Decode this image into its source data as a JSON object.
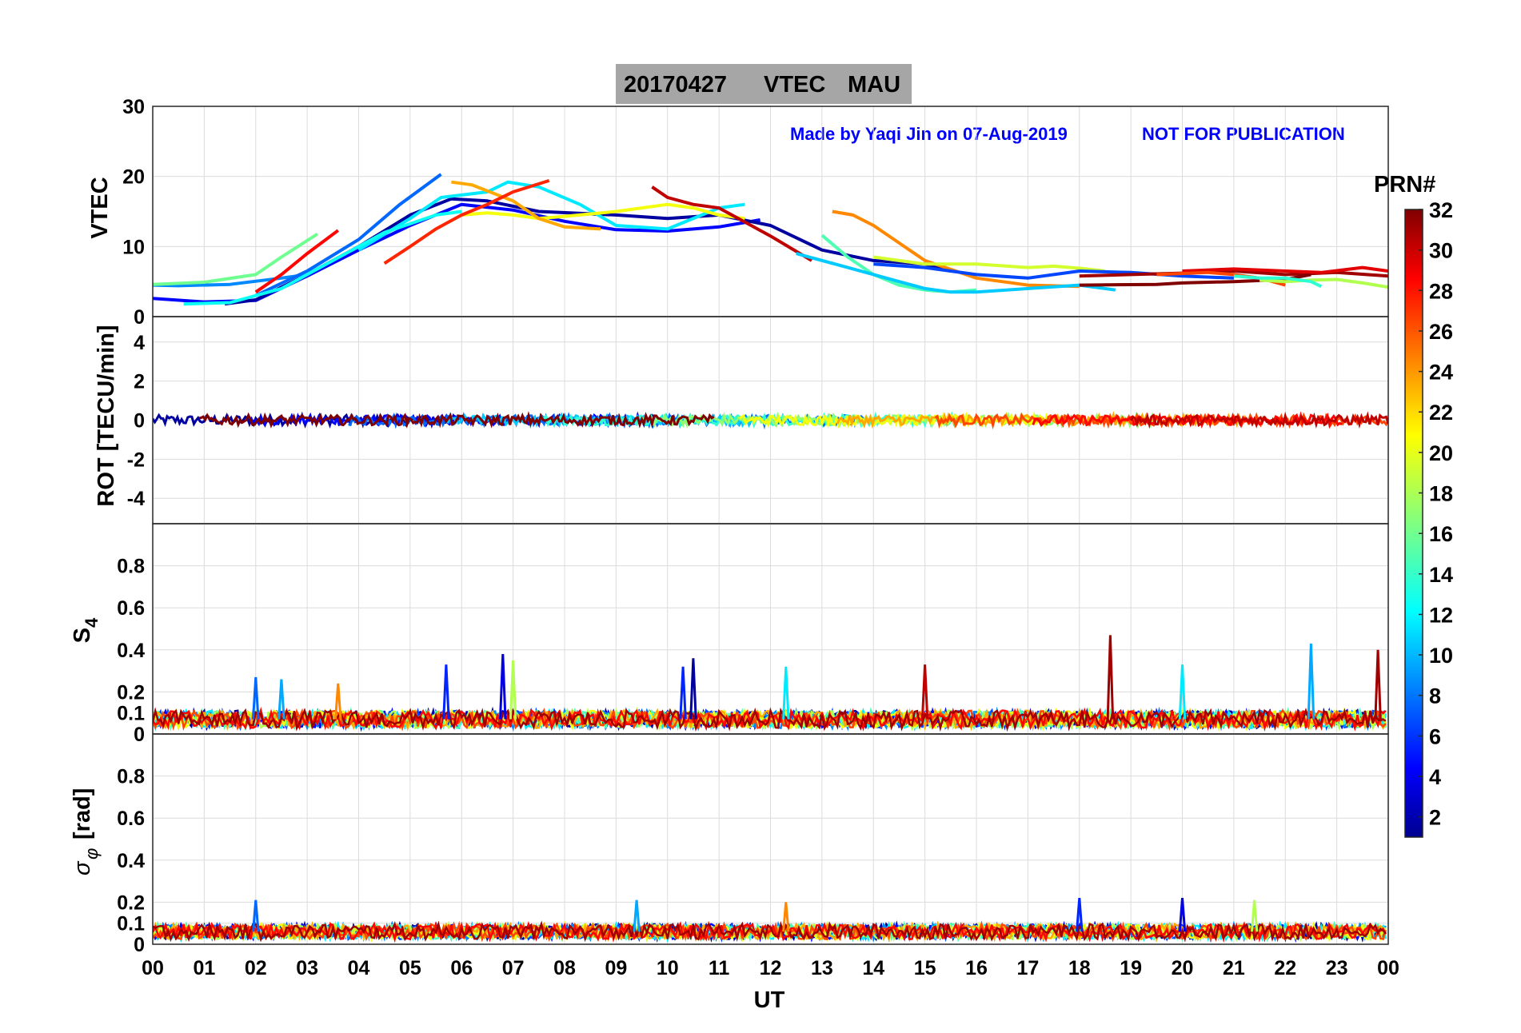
{
  "title": {
    "date": "20170427",
    "product": "VTEC",
    "station": "MAU",
    "background": "#a6a6a6"
  },
  "annotations": {
    "author_note": "Made by Yaqi Jin on 07-Aug-2019",
    "warning": "NOT FOR PUBLICATION",
    "color": "#0000ff"
  },
  "x_axis": {
    "title": "UT",
    "ticks": [
      "00",
      "01",
      "02",
      "03",
      "04",
      "05",
      "06",
      "07",
      "08",
      "09",
      "10",
      "11",
      "12",
      "13",
      "14",
      "15",
      "16",
      "17",
      "18",
      "19",
      "20",
      "21",
      "22",
      "23",
      "00"
    ]
  },
  "colorbar": {
    "title": "PRN#",
    "ticks": [
      "2",
      "4",
      "6",
      "8",
      "10",
      "12",
      "14",
      "16",
      "18",
      "20",
      "22",
      "24",
      "26",
      "28",
      "30",
      "32"
    ],
    "range": [
      1,
      32
    ],
    "colormap": "jet"
  },
  "chart_data": [
    {
      "type": "line",
      "panel": "vtec",
      "ylabel": "VTEC",
      "ylim": [
        0,
        30
      ],
      "yticks": [
        "0",
        "10",
        "20",
        "30"
      ],
      "xlim": [
        0,
        24
      ],
      "series": [
        {
          "prn": 5,
          "x": [
            0.0,
            1.0,
            2.0,
            3.0,
            4.0,
            5.0,
            6.0,
            7.0,
            8.0,
            9.0,
            10.0,
            11.0,
            11.8
          ],
          "y": [
            2.6,
            2.1,
            2.3,
            5.8,
            9.5,
            13.0,
            16.0,
            15.2,
            13.6,
            12.4,
            12.2,
            12.8,
            13.8
          ]
        },
        {
          "prn": 2,
          "x": [
            1.4,
            2.0,
            3.0,
            4.0,
            5.0,
            5.8,
            6.5,
            7.5,
            9.0,
            10.0,
            11.0,
            12.0,
            13.0,
            14.0,
            15.0,
            15.5
          ],
          "y": [
            1.8,
            2.4,
            6.0,
            10.0,
            14.5,
            16.8,
            16.5,
            15.0,
            14.5,
            14.0,
            14.5,
            13.0,
            9.5,
            8.0,
            7.5,
            6.5
          ]
        },
        {
          "prn": 9,
          "x": [
            0.0,
            0.5,
            1.5,
            2.5,
            3.0
          ],
          "y": [
            4.5,
            4.4,
            4.6,
            5.5,
            6.0
          ]
        },
        {
          "prn": 8,
          "x": [
            2.0,
            3.0,
            4.0,
            4.8,
            5.6
          ],
          "y": [
            3.0,
            6.5,
            11.0,
            16.0,
            20.3
          ]
        },
        {
          "prn": 12,
          "x": [
            4.0,
            5.0,
            5.6,
            6.5,
            6.9,
            7.5,
            8.3,
            9.0,
            10.0,
            11.0,
            11.5
          ],
          "y": [
            9.5,
            14.0,
            17.0,
            17.8,
            19.2,
            18.5,
            16.0,
            13.0,
            12.5,
            15.5,
            16.0
          ]
        },
        {
          "prn": 13,
          "x": [
            0.6,
            1.5,
            2.5,
            3.5,
            4.5,
            5.5,
            6.0
          ],
          "y": [
            1.8,
            2.0,
            4.0,
            8.0,
            12.0,
            14.5,
            15.0
          ]
        },
        {
          "prn": 16,
          "x": [
            0.0,
            1.0,
            2.0,
            2.5,
            3.2
          ],
          "y": [
            4.6,
            4.9,
            6.0,
            8.5,
            11.8
          ]
        },
        {
          "prn": 20,
          "x": [
            6.0,
            6.5,
            7.0,
            7.5,
            8.0,
            9.0,
            10.0,
            10.5,
            11.0,
            11.5
          ],
          "y": [
            14.5,
            14.8,
            14.5,
            14.0,
            14.3,
            15.0,
            16.0,
            15.5,
            14.5,
            14.0
          ]
        },
        {
          "prn": 23,
          "x": [
            5.8,
            6.2,
            7.0,
            7.5,
            8.0,
            8.7
          ],
          "y": [
            19.2,
            18.8,
            16.5,
            14.0,
            12.8,
            12.5
          ]
        },
        {
          "prn": 28,
          "x": [
            2.0,
            2.5,
            3.0,
            3.6
          ],
          "y": [
            3.5,
            6.0,
            9.0,
            12.3
          ]
        },
        {
          "prn": 27,
          "x": [
            4.5,
            5.0,
            5.5,
            6.0,
            6.5,
            7.0,
            7.7
          ],
          "y": [
            7.6,
            10.0,
            12.5,
            14.5,
            16.0,
            17.8,
            19.4
          ]
        },
        {
          "prn": 30,
          "x": [
            9.7,
            10.0,
            10.5,
            11.0,
            11.5,
            12.0,
            12.8
          ],
          "y": [
            18.5,
            17.0,
            16.0,
            15.5,
            13.5,
            11.5,
            8.0
          ]
        },
        {
          "prn": 15,
          "x": [
            13.0,
            13.5,
            14.0,
            14.5,
            15.0,
            15.5,
            16.0
          ],
          "y": [
            11.6,
            8.5,
            6.0,
            4.5,
            3.8,
            3.5,
            3.8
          ]
        },
        {
          "prn": 24,
          "x": [
            13.2,
            13.6,
            14.0,
            14.5,
            15.0,
            16.0,
            17.0,
            18.0
          ],
          "y": [
            15.0,
            14.5,
            13.0,
            10.5,
            8.0,
            5.5,
            4.5,
            4.3
          ]
        },
        {
          "prn": 11,
          "x": [
            12.5,
            13.5,
            14.5,
            15.0,
            15.5,
            16.0,
            17.0,
            18.0,
            18.7
          ],
          "y": [
            9.0,
            7.0,
            5.0,
            4.0,
            3.5,
            3.5,
            4.0,
            4.5,
            3.8
          ]
        },
        {
          "prn": 19,
          "x": [
            14.0,
            15.0,
            16.0,
            17.0,
            17.5,
            18.0,
            18.5
          ],
          "y": [
            8.5,
            7.5,
            7.5,
            7.0,
            7.2,
            6.9,
            6.5
          ]
        },
        {
          "prn": 7,
          "x": [
            14.0,
            15.0,
            16.0,
            17.0,
            18.0,
            19.0,
            20.0,
            21.0
          ],
          "y": [
            7.5,
            7.0,
            6.0,
            5.5,
            6.5,
            6.3,
            5.8,
            5.5
          ]
        },
        {
          "prn": 31,
          "x": [
            18.0,
            19.0,
            20.0,
            21.0,
            22.0,
            23.0,
            24.0
          ],
          "y": [
            5.8,
            6.0,
            6.2,
            6.5,
            6.0,
            6.3,
            5.8
          ]
        },
        {
          "prn": 32,
          "x": [
            18.0,
            19.5,
            20.0,
            21.0,
            22.0,
            22.5
          ],
          "y": [
            4.5,
            4.6,
            4.8,
            5.0,
            5.3,
            6.0
          ]
        },
        {
          "prn": 29,
          "x": [
            20.0,
            21.0,
            22.0,
            22.7,
            23.5,
            24.0
          ],
          "y": [
            6.5,
            6.8,
            6.5,
            6.3,
            7.0,
            6.5
          ]
        },
        {
          "prn": 26,
          "x": [
            19.5,
            20.5,
            21.0,
            21.5,
            22.0
          ],
          "y": [
            6.0,
            6.3,
            6.0,
            5.5,
            4.5
          ]
        },
        {
          "prn": 18,
          "x": [
            21.5,
            22.0,
            22.5,
            23.0,
            23.5,
            24.0
          ],
          "y": [
            5.2,
            5.0,
            5.2,
            5.3,
            4.8,
            4.2
          ]
        },
        {
          "prn": 14,
          "x": [
            21.0,
            21.5,
            22.0,
            22.5,
            22.7
          ],
          "y": [
            5.8,
            5.5,
            5.5,
            5.0,
            4.3
          ]
        }
      ]
    },
    {
      "type": "line",
      "panel": "rot",
      "ylabel": "ROT [TECU/min]",
      "ylim": [
        -5.3,
        5.3
      ],
      "yticks": [
        "-4",
        "-2",
        "0",
        "2",
        "4"
      ],
      "description": "rate of TEC for all PRNs; values stay within about +/-0.5 TECU/min around zero"
    },
    {
      "type": "line",
      "panel": "s4",
      "ylabel": "S",
      "ylabel_sub": "4",
      "ylim": [
        0,
        1
      ],
      "yticks": [
        "0",
        "0.1",
        "0.2",
        "0.4",
        "0.6",
        "0.8"
      ],
      "baseline": 0.07,
      "spikes": [
        {
          "x": 2.0,
          "y": 0.27
        },
        {
          "x": 2.5,
          "y": 0.26
        },
        {
          "x": 3.6,
          "y": 0.24
        },
        {
          "x": 5.7,
          "y": 0.33
        },
        {
          "x": 6.8,
          "y": 0.38
        },
        {
          "x": 7.0,
          "y": 0.35
        },
        {
          "x": 10.3,
          "y": 0.32
        },
        {
          "x": 10.5,
          "y": 0.36
        },
        {
          "x": 12.3,
          "y": 0.32
        },
        {
          "x": 15.0,
          "y": 0.33
        },
        {
          "x": 18.6,
          "y": 0.47
        },
        {
          "x": 20.0,
          "y": 0.33
        },
        {
          "x": 22.5,
          "y": 0.43
        },
        {
          "x": 23.8,
          "y": 0.4
        }
      ]
    },
    {
      "type": "line",
      "panel": "sigma_phi",
      "ylabel": "σ",
      "ylabel_sub": "φ",
      "ylabel_unit": "[rad]",
      "ylim": [
        0,
        1
      ],
      "yticks": [
        "0",
        "0.1",
        "0.2",
        "0.4",
        "0.6",
        "0.8"
      ],
      "baseline": 0.06,
      "spikes": [
        {
          "x": 2.0,
          "y": 0.21
        },
        {
          "x": 9.4,
          "y": 0.21
        },
        {
          "x": 12.3,
          "y": 0.2
        },
        {
          "x": 18.0,
          "y": 0.22
        },
        {
          "x": 20.0,
          "y": 0.22
        },
        {
          "x": 21.4,
          "y": 0.21
        }
      ]
    }
  ]
}
